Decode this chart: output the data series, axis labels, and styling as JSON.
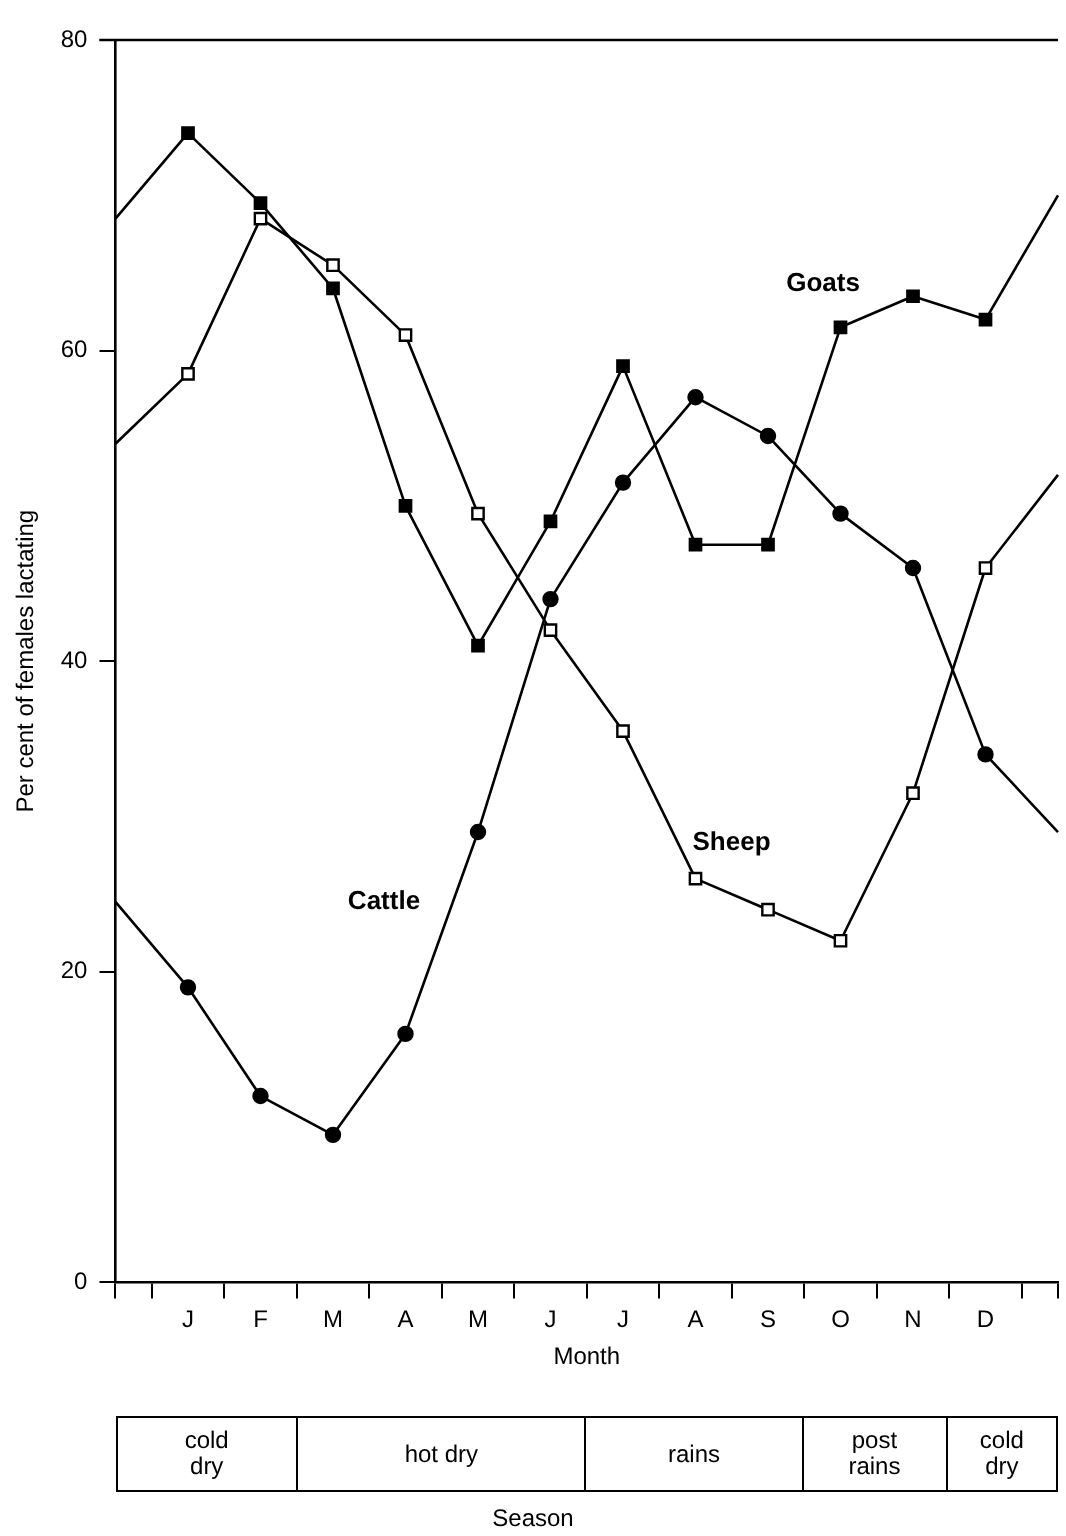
{
  "chart_data": {
    "type": "line",
    "xlabel": "Month",
    "ylabel": "Per cent of females lactating",
    "categories": [
      null,
      "J",
      "F",
      "M",
      "A",
      "M",
      "J",
      "J",
      "A",
      "S",
      "O",
      "N",
      "D",
      null
    ],
    "ylim": [
      0,
      80
    ],
    "yticks": [
      0,
      20,
      40,
      60,
      80
    ],
    "grid": false,
    "legend": false,
    "line_style": "solid",
    "series": [
      {
        "name": "Goats",
        "color": "#000000",
        "marker": "square",
        "values": [
          68.5,
          74,
          69.5,
          64,
          50,
          41,
          49,
          59,
          47.5,
          47.5,
          61.5,
          63.5,
          62,
          70
        ]
      },
      {
        "name": "Sheep",
        "color": "#000000",
        "colors": [
          "#ffffff",
          "#ffffff",
          "#ffffff",
          "#ffffff",
          "#ffffff",
          "#ffffff",
          "#ffffff",
          "#ffffff",
          "#ffffff",
          "#ffffff",
          "#ffffff",
          "#ffffff",
          "#ffffff",
          "#ffffff"
        ],
        "marker": "square",
        "values": [
          54,
          58.5,
          68.5,
          65.5,
          61,
          49.5,
          42,
          35.5,
          26,
          24,
          22,
          31.5,
          46,
          52
        ]
      },
      {
        "name": "Cattle",
        "color": "#000000",
        "marker": "circle",
        "values": [
          24.5,
          19,
          12,
          9.5,
          16,
          29,
          44,
          51.5,
          57,
          54.5,
          49.5,
          46,
          34,
          29
        ]
      }
    ],
    "annotations": [
      "cold\ndry",
      "hot dry",
      "rains",
      "post\nrains",
      "cold\ndry",
      "Season"
    ]
  }
}
